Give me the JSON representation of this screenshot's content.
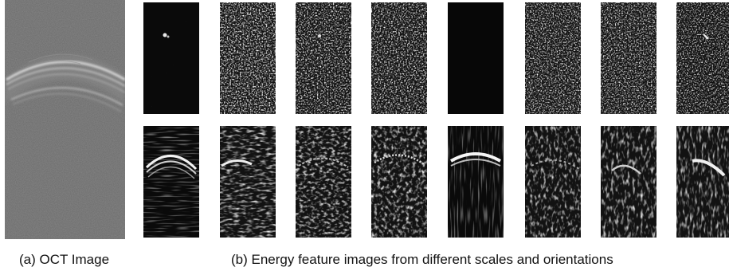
{
  "figure": {
    "panel_a": {
      "caption": "(a) OCT Image",
      "image": "oct-bscan-grayscale"
    },
    "panel_b": {
      "caption": "(b) Energy feature images from different scales and orientations",
      "rows": 2,
      "columns": 8,
      "tile_appearance": [
        [
          "sparse-dark",
          "dense-speckle",
          "dense-speckle",
          "dense-speckle",
          "sparse-dark",
          "dense-speckle",
          "dense-speckle",
          "dense-speckle"
        ],
        [
          "bright-arc",
          "speckle-arc",
          "speckle-arc",
          "speckle-arc",
          "bright-arc",
          "speckle-arc",
          "speckle-arc",
          "speckle-arc"
        ]
      ]
    }
  }
}
